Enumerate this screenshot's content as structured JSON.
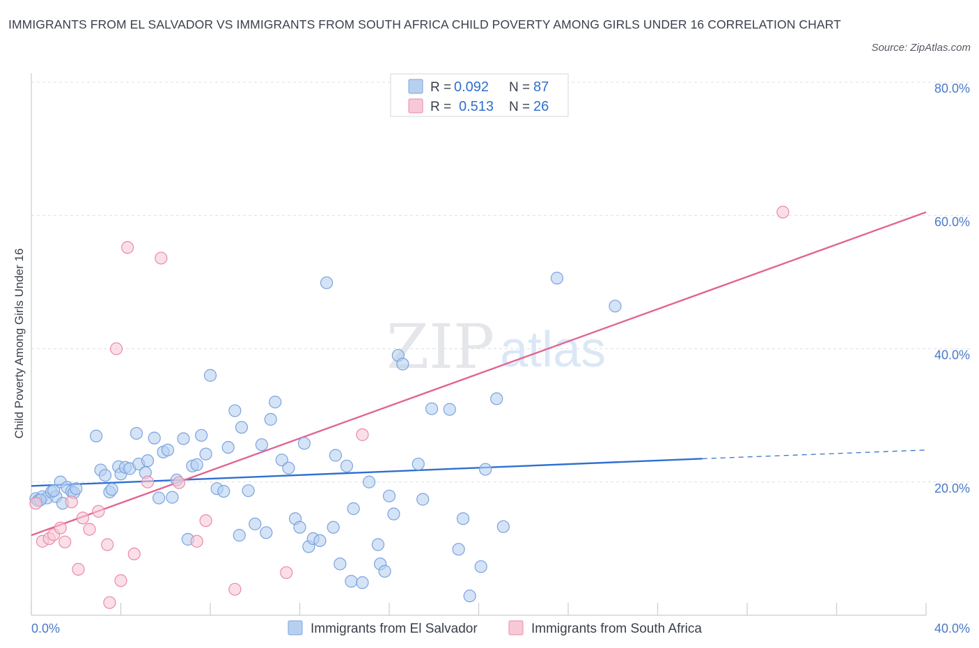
{
  "title": "IMMIGRANTS FROM EL SALVADOR VS IMMIGRANTS FROM SOUTH AFRICA CHILD POVERTY AMONG GIRLS UNDER 16 CORRELATION CHART",
  "source": "Source: ZipAtlas.com",
  "watermark": {
    "zip": "ZIP",
    "atlas": "atlas"
  },
  "colors": {
    "blue_fill": "#b8d0f0",
    "blue_stroke": "#7aa3de",
    "blue_line": "#2e6fd0",
    "pink_fill": "#f7c9d7",
    "pink_stroke": "#e98aa9",
    "pink_line": "#e06593",
    "grid": "#dcdfe4"
  },
  "legend": {
    "rows": [
      {
        "r_label": "R =",
        "r_value": "0.092",
        "n_label": "N =",
        "n_value": "87"
      },
      {
        "r_label": "R =",
        "r_value": "0.513",
        "n_label": "N =",
        "n_value": "26"
      }
    ]
  },
  "chart_data": {
    "type": "scatter",
    "title": "IMMIGRANTS FROM EL SALVADOR VS IMMIGRANTS FROM SOUTH AFRICA CHILD POVERTY AMONG GIRLS UNDER 16 CORRELATION CHART",
    "xlabel": "",
    "ylabel": "Child Poverty Among Girls Under 16",
    "xlim": [
      0,
      40
    ],
    "ylim": [
      0,
      80
    ],
    "x_tick_labels": [
      "0.0%",
      "40.0%"
    ],
    "y_ticks": [
      20,
      40,
      60,
      80
    ],
    "y_tick_labels": [
      "20.0%",
      "40.0%",
      "60.0%",
      "80.0%"
    ],
    "grid": true,
    "legend_position": "top-center",
    "series": [
      {
        "name": "Immigrants from El Salvador",
        "r": 0.092,
        "n": 87,
        "trend": {
          "x0": 0,
          "y0": 19.4,
          "x1": 30,
          "y1": 23.5,
          "dashed_to_x": 40,
          "dashed_to_y": 24.8
        },
        "points": [
          [
            0.2,
            17.5
          ],
          [
            0.3,
            17.2
          ],
          [
            0.5,
            17.8
          ],
          [
            0.7,
            17.6
          ],
          [
            0.9,
            18.5
          ],
          [
            1.1,
            17.8
          ],
          [
            1.3,
            20.0
          ],
          [
            1.4,
            16.8
          ],
          [
            1.6,
            19.2
          ],
          [
            1.8,
            18.6
          ],
          [
            1.9,
            18.4
          ],
          [
            2.0,
            19.0
          ],
          [
            2.9,
            26.9
          ],
          [
            3.1,
            21.8
          ],
          [
            3.3,
            21.0
          ],
          [
            3.5,
            18.5
          ],
          [
            3.9,
            22.3
          ],
          [
            4.0,
            21.2
          ],
          [
            4.2,
            22.2
          ],
          [
            4.4,
            22.0
          ],
          [
            4.7,
            27.3
          ],
          [
            4.8,
            22.7
          ],
          [
            5.1,
            21.4
          ],
          [
            5.2,
            23.2
          ],
          [
            5.5,
            26.6
          ],
          [
            5.7,
            17.6
          ],
          [
            5.9,
            24.5
          ],
          [
            6.1,
            24.8
          ],
          [
            6.3,
            17.7
          ],
          [
            6.5,
            20.3
          ],
          [
            6.8,
            26.5
          ],
          [
            7.0,
            11.4
          ],
          [
            7.2,
            22.4
          ],
          [
            7.4,
            22.6
          ],
          [
            7.6,
            27.0
          ],
          [
            7.8,
            24.2
          ],
          [
            8.0,
            36.0
          ],
          [
            8.3,
            19.0
          ],
          [
            8.6,
            18.6
          ],
          [
            8.8,
            25.2
          ],
          [
            9.1,
            30.7
          ],
          [
            9.3,
            12.0
          ],
          [
            9.4,
            28.2
          ],
          [
            9.7,
            18.7
          ],
          [
            10.0,
            13.7
          ],
          [
            10.3,
            25.6
          ],
          [
            10.5,
            12.4
          ],
          [
            10.7,
            29.4
          ],
          [
            10.9,
            32.0
          ],
          [
            11.2,
            23.3
          ],
          [
            11.5,
            22.1
          ],
          [
            11.8,
            14.5
          ],
          [
            12.0,
            13.2
          ],
          [
            12.2,
            25.8
          ],
          [
            12.4,
            10.3
          ],
          [
            12.6,
            11.5
          ],
          [
            12.9,
            11.2
          ],
          [
            13.2,
            49.9
          ],
          [
            13.5,
            13.2
          ],
          [
            13.6,
            24.0
          ],
          [
            13.8,
            7.7
          ],
          [
            14.1,
            22.4
          ],
          [
            14.3,
            5.1
          ],
          [
            14.4,
            16.0
          ],
          [
            14.8,
            4.9
          ],
          [
            15.1,
            20.0
          ],
          [
            15.5,
            10.6
          ],
          [
            15.6,
            7.7
          ],
          [
            15.8,
            6.6
          ],
          [
            16.0,
            17.9
          ],
          [
            16.2,
            15.2
          ],
          [
            16.4,
            39.0
          ],
          [
            16.6,
            37.7
          ],
          [
            17.3,
            22.7
          ],
          [
            17.5,
            17.4
          ],
          [
            17.9,
            31.0
          ],
          [
            18.7,
            30.9
          ],
          [
            19.1,
            9.9
          ],
          [
            19.3,
            14.5
          ],
          [
            19.6,
            2.9
          ],
          [
            20.1,
            7.3
          ],
          [
            20.3,
            21.9
          ],
          [
            20.8,
            32.5
          ],
          [
            21.1,
            13.3
          ],
          [
            23.5,
            50.6
          ],
          [
            26.1,
            46.4
          ],
          [
            0.4,
            17.3
          ],
          [
            1.0,
            18.7
          ],
          [
            3.6,
            18.9
          ]
        ]
      },
      {
        "name": "Immigrants from South Africa",
        "r": 0.513,
        "n": 26,
        "trend": {
          "x0": 0,
          "y0": 12.0,
          "x1": 40,
          "y1": 60.5
        },
        "points": [
          [
            0.2,
            16.8
          ],
          [
            0.5,
            11.1
          ],
          [
            0.8,
            11.5
          ],
          [
            1.0,
            12.1
          ],
          [
            1.3,
            13.1
          ],
          [
            1.5,
            11.0
          ],
          [
            1.8,
            17.0
          ],
          [
            2.1,
            6.9
          ],
          [
            2.3,
            14.6
          ],
          [
            2.6,
            12.9
          ],
          [
            3.0,
            15.6
          ],
          [
            3.4,
            10.6
          ],
          [
            3.5,
            1.9
          ],
          [
            3.8,
            40.0
          ],
          [
            4.0,
            5.2
          ],
          [
            4.3,
            55.2
          ],
          [
            4.6,
            9.2
          ],
          [
            5.2,
            20.0
          ],
          [
            5.8,
            53.6
          ],
          [
            6.6,
            19.9
          ],
          [
            7.4,
            11.1
          ],
          [
            7.8,
            14.2
          ],
          [
            9.1,
            3.9
          ],
          [
            11.4,
            6.4
          ],
          [
            14.8,
            27.1
          ],
          [
            33.6,
            60.5
          ]
        ]
      }
    ]
  },
  "bottom_legend": {
    "items": [
      {
        "label": "Immigrants from El Salvador"
      },
      {
        "label": "Immigrants from South Africa"
      }
    ]
  }
}
